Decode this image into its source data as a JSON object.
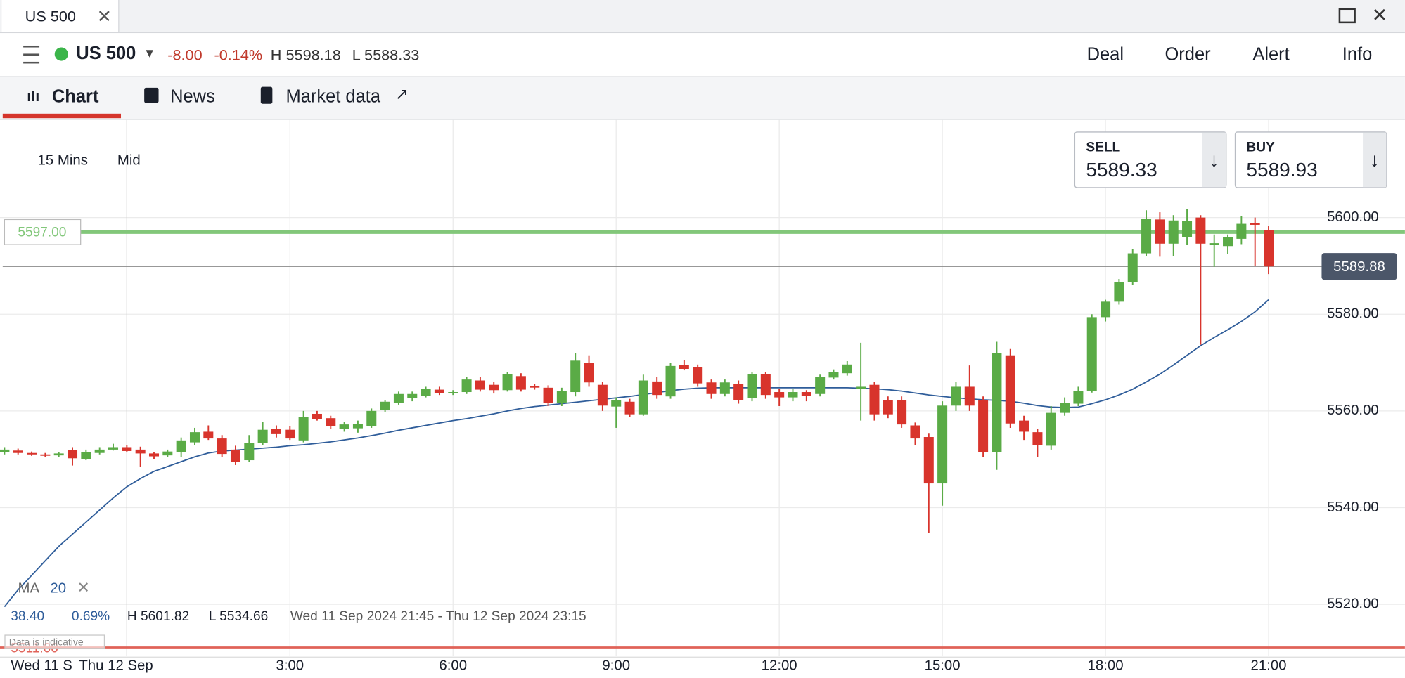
{
  "ui": {
    "tab_title": "US 500",
    "header": {
      "instrument": "US 500",
      "change": "-8.00",
      "change_pct": "-0.14%",
      "high": "H 5598.18",
      "low": "L 5588.33",
      "actions": [
        "Deal",
        "Order",
        "Alert",
        "Info"
      ]
    },
    "tabs": [
      "Chart",
      "News",
      "Market data"
    ],
    "interval": "15 Mins",
    "price_mode": "Mid",
    "sell": {
      "label": "SELL",
      "price": "5589.33"
    },
    "buy": {
      "label": "BUY",
      "price": "5589.93"
    },
    "stats": {
      "change": "38.40",
      "change_pct": "0.69%",
      "high": "H 5601.82",
      "low": "L 5534.66",
      "range": "Wed 11 Sep 2024 21:45 - Thu 12 Sep 2024 23:15"
    },
    "disclaimer": "Data is indicative"
  },
  "chart_data": {
    "type": "candlestick",
    "categories": [
      "Wed 11 S",
      null,
      null,
      null,
      null,
      null,
      null,
      null,
      null,
      "Thu 12 Sep",
      null,
      null,
      null,
      null,
      null,
      null,
      null,
      null,
      null,
      null,
      null,
      "3:00",
      null,
      null,
      null,
      null,
      null,
      null,
      null,
      null,
      null,
      null,
      null,
      "6:00",
      null,
      null,
      null,
      null,
      null,
      null,
      null,
      null,
      null,
      null,
      null,
      "9:00",
      null,
      null,
      null,
      null,
      null,
      null,
      null,
      null,
      null,
      null,
      null,
      "12:00",
      null,
      null,
      null,
      null,
      null,
      null,
      null,
      null,
      null,
      null,
      null,
      "15:00",
      null,
      null,
      null,
      null,
      null,
      null,
      null,
      null,
      null,
      null,
      null,
      "18:00",
      null,
      null,
      null,
      null,
      null,
      null,
      null,
      null,
      null,
      null,
      null,
      "21:00"
    ],
    "open": [
      5551.5,
      5551.8,
      5551.3,
      5551,
      5550.8,
      5551.9,
      5550,
      5551.3,
      5552,
      5552.5,
      5552,
      5551.2,
      5550.8,
      5551.5,
      5553.5,
      5555.7,
      5554.3,
      5552,
      5549.8,
      5553.3,
      5556.3,
      5556.1,
      5553.9,
      5559.4,
      5558.5,
      5556.3,
      5556.4,
      5556.9,
      5560.2,
      5561.7,
      5562.6,
      5563.1,
      5564.4,
      5563.8,
      5563.9,
      5566.3,
      5565.4,
      5564.3,
      5567.2,
      5565.1,
      5564.8,
      5561.7,
      5563.9,
      5570,
      5565.4,
      5560.9,
      5561.9,
      5559.3,
      5566.1,
      5563,
      5569.5,
      5569.1,
      5565.9,
      5563.5,
      5565.6,
      5562.6,
      5567.6,
      5563.9,
      5562.8,
      5563.9,
      5563.5,
      5566.9,
      5567.8,
      5564.6,
      5565.4,
      5562.2,
      5562.2,
      5557,
      5554.6,
      5545,
      5561.1,
      5565,
      5562.2,
      5551.5,
      5571.5,
      5558,
      5555.6,
      5552.8,
      5559.6,
      5561.5,
      5564.1,
      5579.4,
      5582.6,
      5586.7,
      5592.6,
      5599.6,
      5594.6,
      5596,
      5600,
      5594.6,
      5594.1,
      5595.6,
      5598.9,
      5597.4
    ],
    "high": [
      5552.5,
      5552.2,
      5551.6,
      5551.3,
      5551.5,
      5552.5,
      5552,
      5552.5,
      5553.2,
      5553,
      5552.6,
      5551.5,
      5552,
      5554.5,
      5556.5,
      5557,
      5555,
      5552.8,
      5555,
      5557.8,
      5557,
      5556.8,
      5560,
      5560,
      5559,
      5557.8,
      5558,
      5560.5,
      5562.3,
      5564,
      5564,
      5565,
      5565,
      5564.3,
      5567,
      5567,
      5566,
      5568,
      5567.8,
      5565.6,
      5565.3,
      5564.8,
      5572,
      5571.5,
      5566,
      5562.8,
      5562.5,
      5567.5,
      5567,
      5570,
      5570.5,
      5569.6,
      5566.5,
      5566.5,
      5566.3,
      5568,
      5568,
      5564.5,
      5564.5,
      5564.3,
      5567.5,
      5568.6,
      5570.3,
      5574.1,
      5566,
      5563,
      5563,
      5557.6,
      5555.3,
      5562,
      5566,
      5569.4,
      5563,
      5574.3,
      5572.8,
      5559,
      5556.3,
      5561,
      5562.8,
      5565,
      5580,
      5583,
      5587.3,
      5593.5,
      5601.5,
      5601.1,
      5600.5,
      5601.8,
      5600.5,
      5596.5,
      5596.5,
      5600.3,
      5600,
      5598.2
    ],
    "low": [
      5551,
      5551,
      5550.7,
      5550.5,
      5550.5,
      5548.7,
      5549.8,
      5551,
      5551.8,
      5551.4,
      5548.5,
      5550,
      5550.5,
      5550.5,
      5553,
      5554,
      5550.5,
      5548.8,
      5549.5,
      5553,
      5554.5,
      5554,
      5553.5,
      5558,
      5556.3,
      5555.7,
      5555.5,
      5556.5,
      5559.8,
      5561.3,
      5562,
      5562.8,
      5563.3,
      5563.3,
      5563.5,
      5564,
      5563.6,
      5564,
      5564,
      5564.4,
      5561,
      5561,
      5563,
      5565,
      5560,
      5556.5,
      5558.7,
      5559,
      5562.5,
      5562.5,
      5568.4,
      5565,
      5562.5,
      5563,
      5561.5,
      5562,
      5562.5,
      5561,
      5562,
      5562,
      5563,
      5566.5,
      5567.3,
      5558,
      5558,
      5558.5,
      5556.5,
      5553,
      5534.8,
      5540.4,
      5560,
      5560,
      5550.5,
      5547.8,
      5556.5,
      5554,
      5550.5,
      5552,
      5559,
      5561,
      5563.8,
      5578.5,
      5582,
      5586,
      5592,
      5591.9,
      5592,
      5594.4,
      5573.7,
      5589.8,
      5592.5,
      5594.5,
      5590,
      5588.3
    ],
    "close": [
      5552,
      5551.3,
      5551,
      5550.8,
      5551.2,
      5550.2,
      5551.5,
      5552,
      5552.5,
      5551.7,
      5551.2,
      5550.6,
      5551.6,
      5553.9,
      5555.6,
      5554.3,
      5551.1,
      5549.4,
      5553.3,
      5556.1,
      5555.2,
      5554.3,
      5558.7,
      5558.3,
      5556.9,
      5557.2,
      5557.3,
      5560,
      5561.9,
      5563.5,
      5563.5,
      5564.6,
      5563.7,
      5563.9,
      5566.5,
      5564.4,
      5564.3,
      5567.6,
      5564.4,
      5565,
      5561.7,
      5564.1,
      5570.4,
      5565.9,
      5561.1,
      5562.2,
      5559.3,
      5566.3,
      5563.3,
      5569.3,
      5568.7,
      5565.7,
      5563.5,
      5565.9,
      5562.2,
      5567.6,
      5563.3,
      5562.8,
      5563.9,
      5563.1,
      5567,
      5568.1,
      5569.6,
      5565,
      5559.3,
      5559.3,
      5557.2,
      5554.3,
      5545,
      5561.1,
      5565,
      5561.1,
      5551.5,
      5571.9,
      5557.4,
      5555.7,
      5553,
      5559.6,
      5561.7,
      5564.1,
      5579.4,
      5582.6,
      5586.7,
      5592.6,
      5599.8,
      5594.6,
      5599.4,
      5599.3,
      5594.6,
      5594.7,
      5595.9,
      5598.7,
      5598.5,
      5589.88
    ],
    "up_color": "#5aab46",
    "down_color": "#d8342c",
    "overlays": [
      {
        "name": "MA",
        "period": "20",
        "color": "#2f5d9a",
        "values": [
          5519.5,
          5523,
          5526,
          5529,
          5532,
          5534.5,
          5537,
          5539.5,
          5542,
          5544.3,
          5546,
          5547.5,
          5548.5,
          5549.5,
          5550.5,
          5551.3,
          5551.7,
          5551.9,
          5552.1,
          5552.3,
          5552.5,
          5552.8,
          5553,
          5553.3,
          5553.6,
          5554,
          5554.4,
          5554.9,
          5555.4,
          5556,
          5556.5,
          5557,
          5557.5,
          5558,
          5558.4,
          5558.9,
          5559.4,
          5560,
          5560.5,
          5560.9,
          5561.2,
          5561.5,
          5561.8,
          5562.1,
          5562.4,
          5562.7,
          5563,
          5563.4,
          5563.8,
          5564.2,
          5564.5,
          5564.7,
          5564.8,
          5564.8,
          5564.8,
          5564.8,
          5564.8,
          5564.8,
          5564.8,
          5564.8,
          5564.8,
          5564.8,
          5564.8,
          5564.7,
          5564.6,
          5564.4,
          5564.1,
          5563.7,
          5563.3,
          5563,
          5562.7,
          5562.5,
          5562.3,
          5562.2,
          5562,
          5561.6,
          5561.1,
          5560.8,
          5560.7,
          5560.8,
          5561.5,
          5562.3,
          5563.3,
          5564.5,
          5566,
          5567.6,
          5569.5,
          5571.5,
          5573.5,
          5575.2,
          5576.8,
          5578.5,
          5580.5,
          5583
        ]
      }
    ],
    "levels": [
      {
        "value": 5597,
        "label": "5597.00",
        "color": "#82c77a"
      },
      {
        "value": 5589.88,
        "label": "5589.88",
        "color": "#8a8a8a"
      },
      {
        "value": 5511,
        "label": "5511.00",
        "color": "#e06258"
      }
    ],
    "ylim": [
      5510,
      5620
    ],
    "yticks": [
      {
        "value": 5520,
        "label": "5520.00"
      },
      {
        "value": 5540,
        "label": "5540.00"
      },
      {
        "value": 5560,
        "label": "5560.00"
      },
      {
        "value": 5580,
        "label": "5580.00"
      },
      {
        "value": 5600,
        "label": "5600.00"
      }
    ],
    "grid": true
  }
}
